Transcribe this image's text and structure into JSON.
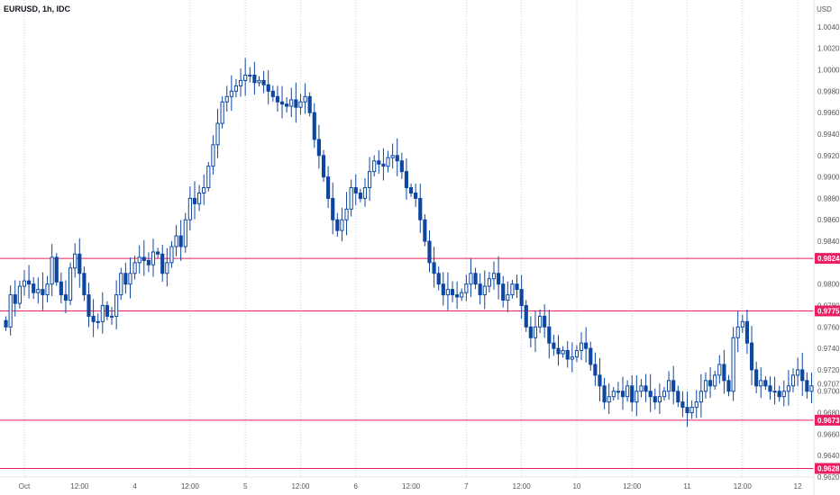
{
  "header": {
    "symbol": "EURUSD, 1h, IDC",
    "currency": "USD"
  },
  "colors": {
    "bear": "#0d47a1",
    "bull": "#0d47a1",
    "level_line": "#e91e63",
    "grid": "#c8ccd4",
    "price_label_bg": "#e91e63"
  },
  "chart_data": {
    "type": "candlestick",
    "title": "EURUSD, 1h, IDC",
    "ylabel": "USD",
    "ylim": [
      0.962,
      1.005
    ],
    "yticks": [
      {
        "value": 1.004,
        "label": "1.0040"
      },
      {
        "value": 1.002,
        "label": "1.0020"
      },
      {
        "value": 1.0,
        "label": "1.0000"
      },
      {
        "value": 0.998,
        "label": "0.9980"
      },
      {
        "value": 0.996,
        "label": "0.9960"
      },
      {
        "value": 0.994,
        "label": "0.9940"
      },
      {
        "value": 0.992,
        "label": "0.9920"
      },
      {
        "value": 0.99,
        "label": "0.9900"
      },
      {
        "value": 0.988,
        "label": "0.9880"
      },
      {
        "value": 0.986,
        "label": "0.9860"
      },
      {
        "value": 0.984,
        "label": "0.9840"
      },
      {
        "value": 0.98,
        "label": "0.9800"
      },
      {
        "value": 0.978,
        "label": "0.9780"
      },
      {
        "value": 0.976,
        "label": "0.9760"
      },
      {
        "value": 0.974,
        "label": "0.9740"
      },
      {
        "value": 0.972,
        "label": "0.9720"
      },
      {
        "value": 0.97,
        "label": "0.9700"
      },
      {
        "value": 0.968,
        "label": "0.9680"
      },
      {
        "value": 0.966,
        "label": "0.9660"
      },
      {
        "value": 0.964,
        "label": "0.9640"
      },
      {
        "value": 0.962,
        "label": "0.9620"
      }
    ],
    "xticks": [
      {
        "label": "Oct",
        "index": 4
      },
      {
        "label": "12:00",
        "index": 16
      },
      {
        "label": "4",
        "index": 28
      },
      {
        "label": "12:00",
        "index": 40
      },
      {
        "label": "5",
        "index": 52
      },
      {
        "label": "12:00",
        "index": 64
      },
      {
        "label": "6",
        "index": 76
      },
      {
        "label": "12:00",
        "index": 88
      },
      {
        "label": "7",
        "index": 100
      },
      {
        "label": "12:00",
        "index": 112
      },
      {
        "label": "10",
        "index": 124
      },
      {
        "label": "12:00",
        "index": 136
      },
      {
        "label": "11",
        "index": 148
      },
      {
        "label": "12:00",
        "index": 160
      },
      {
        "label": "12",
        "index": 172
      },
      {
        "label": "12:00",
        "index": 184
      }
    ],
    "vgrid_indices": [
      4,
      40,
      52,
      64,
      76,
      100,
      112,
      124,
      136,
      148,
      160,
      172
    ],
    "levels": [
      {
        "name": "level-1",
        "value": 0.9824,
        "label": "0.9824"
      },
      {
        "name": "level-2",
        "value": 0.9775,
        "label": "0.9775"
      },
      {
        "name": "level-3",
        "value": 0.9673,
        "label": "0.9673"
      },
      {
        "name": "level-4",
        "value": 0.9628,
        "label": "0.9628"
      }
    ],
    "current_price": {
      "value": 0.9707,
      "label": "0.9707"
    },
    "closes": [
      0.976,
      0.979,
      0.9782,
      0.9798,
      0.9803,
      0.98,
      0.9792,
      0.9795,
      0.979,
      0.98,
      0.9825,
      0.9802,
      0.979,
      0.9785,
      0.9815,
      0.9828,
      0.981,
      0.979,
      0.977,
      0.9765,
      0.9765,
      0.978,
      0.977,
      0.977,
      0.979,
      0.981,
      0.98,
      0.981,
      0.982,
      0.9825,
      0.9822,
      0.9818,
      0.983,
      0.9828,
      0.981,
      0.982,
      0.9835,
      0.9845,
      0.9835,
      0.986,
      0.988,
      0.9875,
      0.9885,
      0.989,
      0.991,
      0.993,
      0.995,
      0.997,
      0.9975,
      0.998,
      0.9985,
      0.999,
      0.9995,
      0.9995,
      0.9988,
      0.999,
      0.9986,
      0.998,
      0.9975,
      0.997,
      0.9968,
      0.9966,
      0.9972,
      0.9965,
      0.997,
      0.9975,
      0.996,
      0.9935,
      0.992,
      0.99,
      0.988,
      0.986,
      0.985,
      0.986,
      0.987,
      0.989,
      0.9885,
      0.988,
      0.989,
      0.9905,
      0.9915,
      0.9912,
      0.991,
      0.9918,
      0.992,
      0.9915,
      0.9905,
      0.989,
      0.9885,
      0.988,
      0.986,
      0.984,
      0.982,
      0.981,
      0.98,
      0.979,
      0.9795,
      0.979,
      0.9788,
      0.9792,
      0.98,
      0.981,
      0.98,
      0.979,
      0.9798,
      0.9805,
      0.981,
      0.98,
      0.9785,
      0.979,
      0.98,
      0.9795,
      0.978,
      0.976,
      0.975,
      0.976,
      0.977,
      0.976,
      0.9745,
      0.974,
      0.9735,
      0.9738,
      0.973,
      0.9732,
      0.9738,
      0.9745,
      0.974,
      0.9725,
      0.9715,
      0.9705,
      0.969,
      0.9695,
      0.97,
      0.97,
      0.9695,
      0.9705,
      0.969,
      0.97,
      0.9705,
      0.97,
      0.9695,
      0.969,
      0.9695,
      0.97,
      0.971,
      0.97,
      0.969,
      0.9685,
      0.968,
      0.9685,
      0.969,
      0.97,
      0.971,
      0.9705,
      0.9715,
      0.9725,
      0.971,
      0.97,
      0.975,
      0.976,
      0.9765,
      0.9745,
      0.972,
      0.9705,
      0.971,
      0.9705,
      0.97,
      0.97,
      0.9695,
      0.97,
      0.9705,
      0.9715,
      0.972,
      0.971,
      0.97,
      0.9705
    ]
  }
}
